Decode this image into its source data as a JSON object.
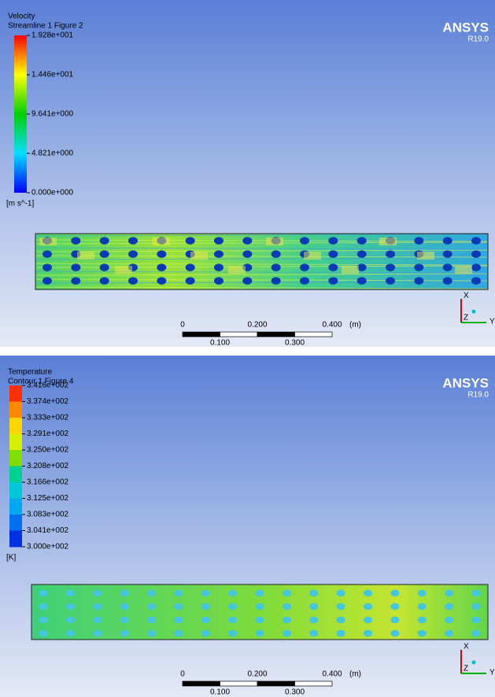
{
  "panels": [
    {
      "legend": {
        "title": "Velocity",
        "subtitle": "Streamline 1 Figure 2",
        "labels": [
          "1.928e+001",
          "1.446e+001",
          "9.641e+000",
          "4.821e+000",
          "0.000e+000"
        ],
        "unit": "[m s^-1]"
      },
      "logo": {
        "brand": "ANSYS",
        "version": "R19.0"
      },
      "scale": {
        "top": [
          "0",
          "0.200",
          "0.400",
          "(m)"
        ],
        "bottom": [
          "0.100",
          "0.300"
        ]
      },
      "axes": {
        "x": "X",
        "y": "Y",
        "z": "Z"
      }
    },
    {
      "legend": {
        "title": "Temperature",
        "subtitle": "Contour 1 Figure 4",
        "labels": [
          "3.416e+002",
          "3.374e+002",
          "3.333e+002",
          "3.291e+002",
          "3.250e+002",
          "3.208e+002",
          "3.166e+002",
          "3.125e+002",
          "3.083e+002",
          "3.041e+002",
          "3.000e+002"
        ],
        "unit": "[K]"
      },
      "logo": {
        "brand": "ANSYS",
        "version": "R19.0"
      },
      "scale": {
        "top": [
          "0",
          "0.200",
          "0.400",
          "(m)"
        ],
        "bottom": [
          "0.100",
          "0.300"
        ]
      },
      "axes": {
        "x": "X",
        "y": "Y",
        "z": "Z"
      }
    }
  ]
}
